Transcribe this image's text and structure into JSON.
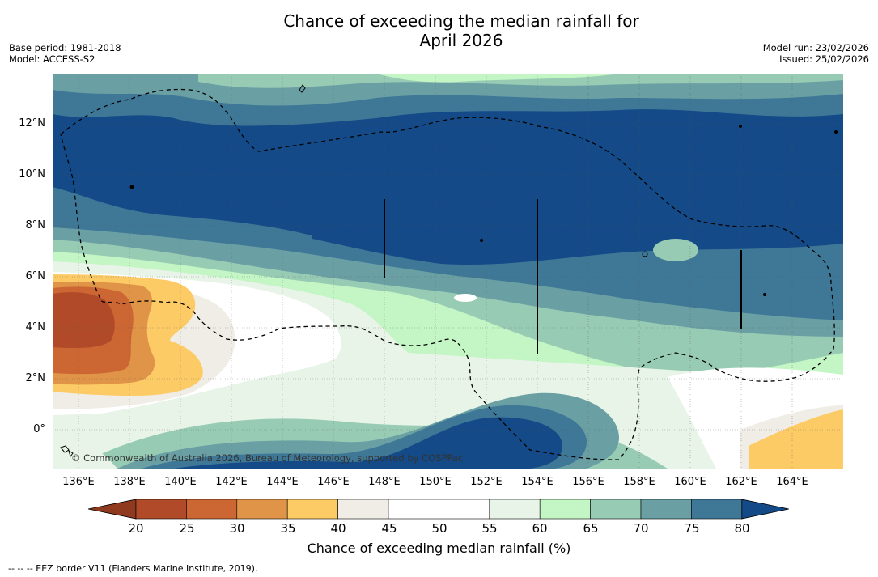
{
  "title": "Chance of exceeding the median rainfall for",
  "subtitle": "April 2026",
  "meta": {
    "base_period": "Base period: 1981-2018",
    "model": "Model: ACCESS-S2",
    "model_run": "Model run: 23/02/2026",
    "issued": "Issued: 25/02/2026"
  },
  "map": {
    "copyright": "© Commonwealth of Australia 2026, Bureau of Meteorology, supported by COSPPac",
    "lat_labels": [
      "12°N",
      "10°N",
      "8°N",
      "6°N",
      "4°N",
      "2°N",
      "0°"
    ],
    "lon_labels": [
      "136°E",
      "138°E",
      "140°E",
      "142°E",
      "144°E",
      "146°E",
      "148°E",
      "150°E",
      "152°E",
      "154°E",
      "156°E",
      "158°E",
      "160°E",
      "162°E",
      "164°E"
    ]
  },
  "legend": {
    "ticks": [
      "20",
      "25",
      "30",
      "35",
      "40",
      "45",
      "50",
      "55",
      "60",
      "65",
      "70",
      "75",
      "80"
    ],
    "colors": [
      "#8f3a1e",
      "#b04a28",
      "#cc6633",
      "#e09448",
      "#fdcb66",
      "#f0ede6",
      "#ffffff",
      "#ffffff",
      "#e8f4e8",
      "#c4f5c4",
      "#98cbb4",
      "#6aa0a4",
      "#3f7897",
      "#134a87"
    ],
    "label": "Chance of exceeding median rainfall (%)"
  },
  "footer": "--  --  -- EEZ border V11 (Flanders Marine Institute, 2019)."
}
